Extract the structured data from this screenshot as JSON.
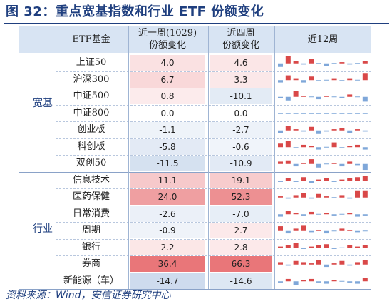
{
  "title": "图 32：重点宽基指数和行业 ETF 份额变化",
  "source": "资料来源：Wind，安信证券研究中心",
  "table": {
    "headers": {
      "fund": "ETF基金",
      "week_line1": "近一周(1029)",
      "week_line2": "份额变化",
      "month_line1": "近四周",
      "month_line2": "份额变化",
      "trend": "近12周"
    },
    "groups": [
      {
        "label": "宽基",
        "rows": [
          {
            "name": "上证50",
            "week": "4.0",
            "month": "4.6"
          },
          {
            "name": "沪深300",
            "week": "6.7",
            "month": "3.3"
          },
          {
            "name": "中证500",
            "week": "0.8",
            "month": "-10.1"
          },
          {
            "name": "中证800",
            "week": "0.0",
            "month": "0.0"
          },
          {
            "name": "创业板",
            "week": "-1.1",
            "month": "-2.7"
          },
          {
            "name": "科创板",
            "week": "-5.8",
            "month": "-0.6"
          },
          {
            "name": "双创50",
            "week": "-11.5",
            "month": "-10.9"
          }
        ]
      },
      {
        "label": "行业",
        "rows": [
          {
            "name": "信息技术",
            "week": "11.1",
            "month": "19.1"
          },
          {
            "name": "医药保健",
            "week": "24.0",
            "month": "52.3"
          },
          {
            "name": "日常消费",
            "week": "-2.6",
            "month": "-7.0"
          },
          {
            "name": "周期",
            "week": "-0.9",
            "month": "2.7"
          },
          {
            "name": "银行",
            "week": "2.2",
            "month": "2.8"
          },
          {
            "name": "券商",
            "week": "36.4",
            "month": "66.3"
          },
          {
            "name": "新能源（车）",
            "week": "-14.7",
            "month": "-14.6"
          }
        ]
      }
    ]
  },
  "chart_data": {
    "type": "table",
    "columns": [
      "ETF基金",
      "近一周(1029) 份额变化",
      "近四周 份额变化",
      "近12周"
    ],
    "row_groups": [
      "宽基",
      "行业"
    ],
    "rows": [
      "上证50",
      "沪深300",
      "中证500",
      "中证800",
      "创业板",
      "科创板",
      "双创50",
      "信息技术",
      "医药保健",
      "日常消费",
      "周期",
      "银行",
      "券商",
      "新能源（车）"
    ],
    "week_change": [
      4.0,
      6.7,
      0.8,
      0.0,
      -1.1,
      -5.8,
      -11.5,
      11.1,
      24.0,
      -2.6,
      -0.9,
      2.2,
      36.4,
      -14.7
    ],
    "four_week_change": [
      4.6,
      3.3,
      -10.1,
      0.0,
      -2.7,
      -0.6,
      -10.9,
      19.1,
      52.3,
      -7.0,
      2.7,
      2.8,
      66.3,
      -14.6
    ],
    "sparkline_12w": [
      [
        -3,
        6,
        2,
        -1,
        4,
        0,
        -2,
        0,
        1,
        -1,
        0,
        2
      ],
      [
        -2,
        4,
        1,
        -2,
        3,
        -1,
        0,
        1,
        -1,
        1,
        0,
        6
      ],
      [
        -1,
        -3,
        5,
        1,
        0,
        -2,
        1,
        0,
        -1,
        2,
        0,
        -4
      ],
      [
        0,
        0,
        0,
        0,
        0,
        0,
        0,
        0,
        0,
        0,
        0,
        0
      ],
      [
        -2,
        4,
        1,
        -1,
        3,
        -3,
        -1,
        1,
        2,
        -2,
        1,
        -1
      ],
      [
        3,
        5,
        -1,
        2,
        1,
        -2,
        0,
        4,
        -1,
        1,
        2,
        -2
      ],
      [
        2,
        3,
        -2,
        1,
        4,
        -3,
        0,
        1,
        -2,
        2,
        -1,
        -5
      ],
      [
        -1,
        2,
        -1,
        3,
        -2,
        1,
        2,
        -1,
        1,
        2,
        3,
        4
      ],
      [
        1,
        -1,
        2,
        4,
        -1,
        3,
        1,
        0,
        2,
        -1,
        6,
        6
      ],
      [
        -2,
        3,
        1,
        -1,
        2,
        0,
        1,
        -1,
        0,
        1,
        -2,
        -1
      ],
      [
        4,
        -2,
        2,
        5,
        -1,
        1,
        -2,
        0,
        2,
        1,
        -1,
        0
      ],
      [
        1,
        2,
        4,
        -1,
        1,
        2,
        3,
        -1,
        0,
        2,
        1,
        2
      ],
      [
        2,
        -1,
        3,
        2,
        1,
        4,
        -2,
        1,
        3,
        -1,
        2,
        4
      ],
      [
        -1,
        2,
        -3,
        1,
        2,
        -1,
        -2,
        1,
        0,
        -1,
        -2,
        3
      ]
    ],
    "colors": {
      "positive": "#d94848",
      "negative": "#7fa7d9"
    }
  }
}
